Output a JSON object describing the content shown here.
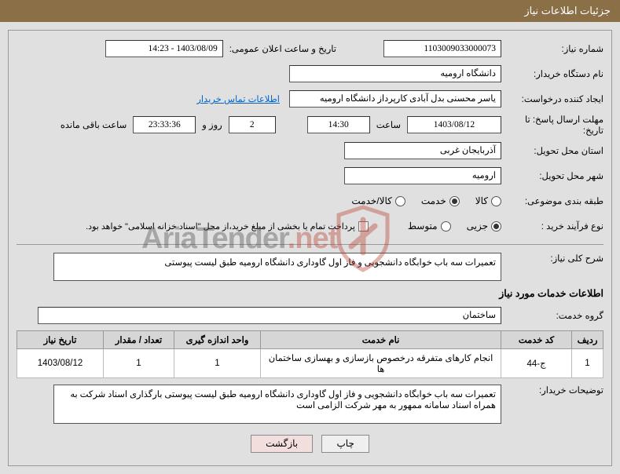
{
  "header": {
    "title": "جزئیات اطلاعات نیاز"
  },
  "fields": {
    "need_number_label": "شماره نیاز:",
    "need_number": "1103009033000073",
    "announce_label": "تاریخ و ساعت اعلان عمومی:",
    "announce_value": "1403/08/09 - 14:23",
    "buyer_label": "نام دستگاه خریدار:",
    "buyer_value": "دانشگاه ارومیه",
    "requester_label": "ایجاد کننده درخواست:",
    "requester_value": "یاسر محسنی بدل آبادی کارپرداز دانشگاه ارومیه",
    "contact_link": "اطلاعات تماس خریدار",
    "deadline_label": "مهلت ارسال پاسخ: تا تاریخ:",
    "deadline_date": "1403/08/12",
    "time_label": "ساعت",
    "deadline_time": "14:30",
    "days_remaining": "2",
    "days_label": "روز و",
    "hours_remaining": "23:33:36",
    "remaining_label": "ساعت باقی مانده",
    "province_label": "استان محل تحویل:",
    "province_value": "آذربایجان غربی",
    "city_label": "شهر محل تحویل:",
    "city_value": "ارومیه",
    "category_label": "طبقه بندی موضوعی:",
    "category_options": {
      "goods": "کالا",
      "service": "خدمت",
      "both": "کالا/خدمت"
    },
    "process_label": "نوع فرآیند خرید :",
    "process_options": {
      "minor": "جزیی",
      "medium": "متوسط"
    },
    "treasury_note": "پرداخت تمام یا بخشی از مبلغ خرید،از محل \"اسناد خزانه اسلامی\" خواهد بود.",
    "summary_label": "شرح کلی نیاز:",
    "summary_value": "تعمیرات سه باب خوابگاه دانشجویی و فاز اول گاوداری دانشگاه ارومیه طبق لیست پیوستی",
    "services_title": "اطلاعات خدمات مورد نیاز",
    "group_label": "گروه خدمت:",
    "group_value": "ساختمان",
    "buyer_notes_label": "توضیحات خریدار:",
    "buyer_notes_value": "تعمیرات سه باب خوابگاه دانشجویی و فاز اول گاوداری دانشگاه ارومیه طبق لیست پیوستی بارگذاری اسناد شرکت به همراه اسناد سامانه ممهور به مهر شرکت الزامی است"
  },
  "table": {
    "columns": [
      "ردیف",
      "کد خدمت",
      "نام خدمت",
      "واحد اندازه گیری",
      "تعداد / مقدار",
      "تاریخ نیاز"
    ],
    "col_widths": [
      "40px",
      "90px",
      "auto",
      "110px",
      "90px",
      "110px"
    ],
    "rows": [
      [
        "1",
        "ج-44",
        "انجام کارهای متفرقه درخصوص بازسازی و بهسازی ساختمان ها",
        "1",
        "1",
        "1403/08/12"
      ]
    ]
  },
  "buttons": {
    "print": "چاپ",
    "back": "بازگشت"
  },
  "watermark": {
    "brand": "AriaTender",
    "tld": ".net"
  },
  "colors": {
    "header_bg": "#8b6f47",
    "page_bg": "#e0e0e0",
    "border": "#999999",
    "link": "#0066cc",
    "wm_red": "#b8392e"
  }
}
